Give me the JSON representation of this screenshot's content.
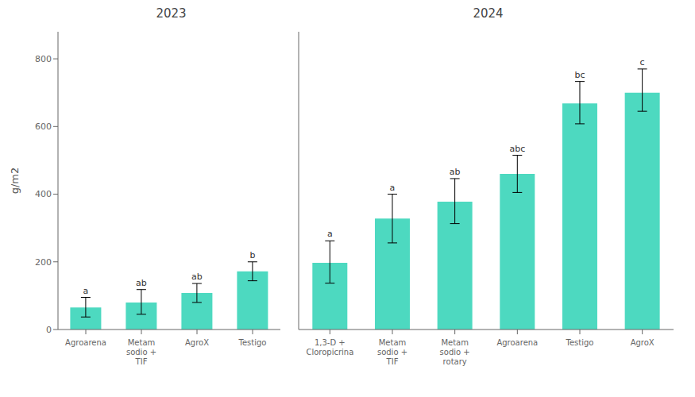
{
  "chart_data": [
    {
      "type": "bar",
      "title": "2023",
      "categories": [
        "Agroarena",
        "Metam\nsodio +\nTIF",
        "AgroX",
        "Testigo"
      ],
      "values": [
        65,
        80,
        108,
        172
      ],
      "errors_up": [
        30,
        38,
        28,
        28
      ],
      "errors_down": [
        28,
        35,
        28,
        28
      ],
      "annotations": [
        "a",
        "ab",
        "ab",
        "b"
      ],
      "ylim": [
        0,
        880
      ],
      "yticks": [
        0,
        200,
        400,
        600,
        800
      ],
      "ylabel": "g/m2",
      "color": "#4dd9c0",
      "grid": false
    },
    {
      "type": "bar",
      "title": "2024",
      "categories": [
        "1,3-D +\nCloropicrina",
        "Metam\nsodio +\nTIF",
        "Metam\nsodio +\nrotary",
        "Agroarena",
        "Testigo",
        "AgroX"
      ],
      "values": [
        197,
        328,
        378,
        460,
        668,
        700
      ],
      "errors_up": [
        65,
        72,
        68,
        55,
        65,
        70
      ],
      "errors_down": [
        60,
        72,
        65,
        55,
        60,
        55
      ],
      "annotations": [
        "a",
        "a",
        "ab",
        "abc",
        "bc",
        "c"
      ],
      "ylim": [
        0,
        880
      ],
      "yticks": [
        0,
        200,
        400,
        600,
        800
      ],
      "tick_labels": "x",
      "color": "#4dd9c0",
      "grid": false
    }
  ]
}
